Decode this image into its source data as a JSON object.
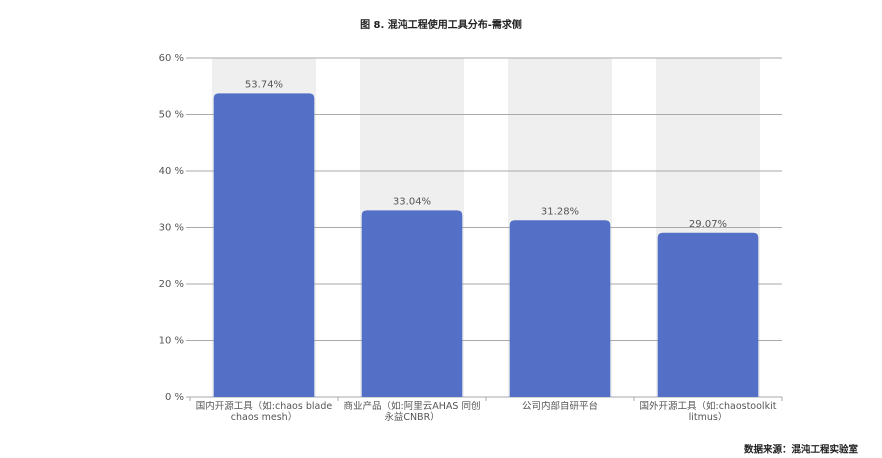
{
  "chart_data": {
    "type": "bar",
    "title": "图 8. 混沌工程使用工具分布-需求侧",
    "categories": [
      "国内开源工具（如:chaos blade chaos mesh）",
      "商业产品（如:阿里云AHAS 同创永益CNBR）",
      "公司内部自研平台",
      "国外开源工具（如:chaostoolkit litmus）"
    ],
    "values": [
      53.74,
      33.04,
      31.28,
      29.07
    ],
    "value_labels": [
      "53.74%",
      "33.04%",
      "31.28%",
      "29.07%"
    ],
    "color": "#5470c6",
    "ylim": [
      0,
      60
    ],
    "yticks": [
      {
        "value": 0,
        "label": "0 %"
      },
      {
        "value": 10,
        "label": "10 %"
      },
      {
        "value": 20,
        "label": "20 %"
      },
      {
        "value": 30,
        "label": "30 %"
      },
      {
        "value": 40,
        "label": "40 %"
      },
      {
        "value": 50,
        "label": "50 %"
      },
      {
        "value": 60,
        "label": "60 %"
      }
    ],
    "grid": true,
    "source": "数据来源：混沌工程实验室"
  }
}
